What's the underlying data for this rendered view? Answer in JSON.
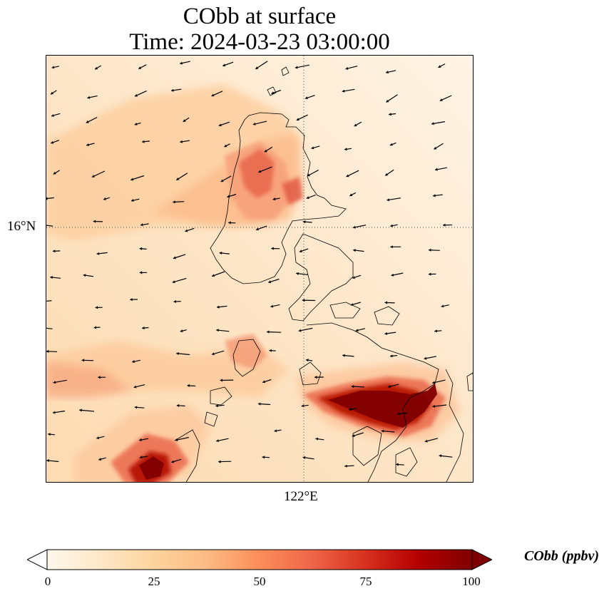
{
  "title": {
    "line1": "CObb at surface",
    "line2": "Time: 2024-03-23 03:00:00"
  },
  "map": {
    "gridlines": {
      "latitude_label": "16°N",
      "longitude_label": "122°E",
      "style": "dotted"
    },
    "coastlines": true,
    "wind_vectors": true
  },
  "colorbar": {
    "label": "CObb (ppbv)",
    "min": 0,
    "max": 100,
    "ticks": [
      "0",
      "25",
      "50",
      "75",
      "100"
    ],
    "extend": "both",
    "colormap": "OrRd",
    "colors": [
      "#fff7ec",
      "#fee8c8",
      "#fdd49e",
      "#fdbb84",
      "#fc8d59",
      "#ef6548",
      "#d7301f",
      "#b30000",
      "#7f0000"
    ]
  }
}
